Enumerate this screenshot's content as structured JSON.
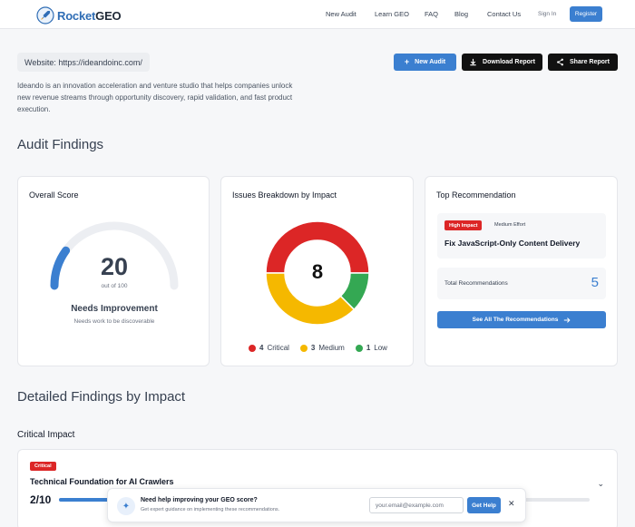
{
  "nav": {
    "logo_rocket": "Rocket",
    "logo_geo": "GEO",
    "links": [
      "New Audit",
      "Learn GEO",
      "FAQ",
      "Blog",
      "Contact Us"
    ],
    "signin": "Sign In",
    "register": "Register"
  },
  "header": {
    "website": "Website: https://ideandoinc.com/",
    "description": "Ideando is an innovation acceleration and venture studio that helps companies unlock new revenue streams through opportunity discovery, rapid validation, and fast product execution.",
    "new_audit": "New Audit",
    "download_report": "Download Report",
    "share_report": "Share Report"
  },
  "audit_findings_title": "Audit Findings",
  "overall": {
    "title": "Overall Score",
    "score": "20",
    "score_fraction": 0.2,
    "out_of": "out of 100",
    "status": "Needs Improvement",
    "status_sub": "Needs work to be discoverable"
  },
  "breakdown": {
    "title": "Issues Breakdown by Impact",
    "total": "8",
    "items": [
      {
        "count": "4",
        "label": "Critical",
        "value": 4,
        "color": "#dc2626"
      },
      {
        "count": "3",
        "label": "Medium",
        "value": 3,
        "color": "#f5b800"
      },
      {
        "count": "1",
        "label": "Low",
        "value": 1,
        "color": "#34a853"
      }
    ]
  },
  "recommendation": {
    "title": "Top Recommendation",
    "impact_badge": "High Impact",
    "effort": "Medium Effort",
    "rec_title": "Fix JavaScript-Only Content Delivery",
    "total_label": "Total Recommendations",
    "total_count": "5",
    "see_all": "See All The Recommendations"
  },
  "detailed_title": "Detailed Findings by Impact",
  "critical_impact_title": "Critical Impact",
  "finding": {
    "badge": "Critical",
    "title": "Technical Foundation for AI Crawlers",
    "score": "2/10",
    "fraction": 0.2
  },
  "toast": {
    "title": "Need help improving your GEO score?",
    "subtitle": "Get expert guidance on implementing these recommendations.",
    "email_placeholder": "your.email@example.com",
    "button": "Get Help",
    "close": "✕"
  }
}
